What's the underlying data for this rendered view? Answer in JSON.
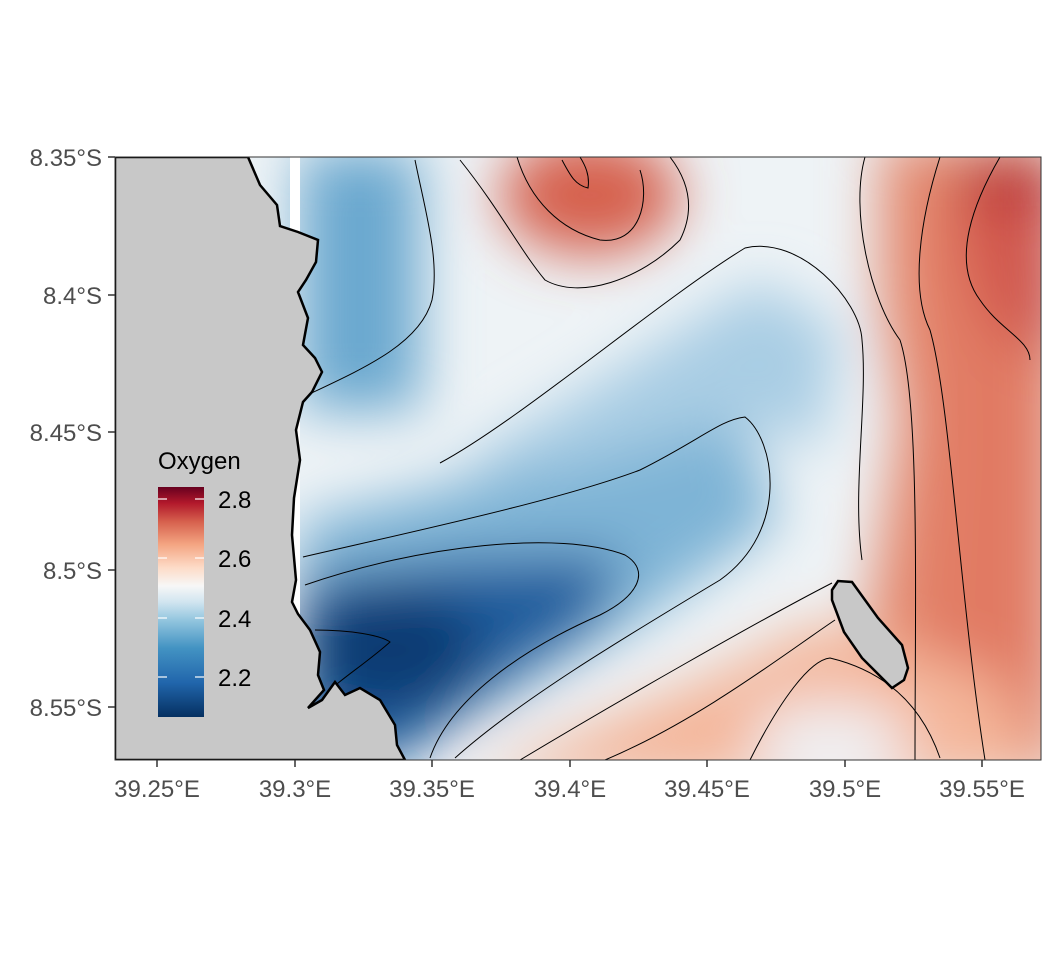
{
  "map": {
    "variable": "Oxygen",
    "x_ticks": [
      "39.25°E",
      "39.3°E",
      "39.35°E",
      "39.4°E",
      "39.45°E",
      "39.5°E",
      "39.55°E"
    ],
    "y_ticks": [
      "8.35°S",
      "8.4°S",
      "8.45°S",
      "8.5°S",
      "8.55°S"
    ],
    "lon_range": [
      39.23,
      39.575
    ],
    "lat_range": [
      -8.57,
      -8.35
    ],
    "colors": {
      "land": "#c8c8c8",
      "coastline": "#000000",
      "contour": "#000000",
      "scale_low": "#053061",
      "scale_mid": "#f7f7f7",
      "scale_high": "#67001f"
    }
  },
  "legend": {
    "title": "Oxygen",
    "position": "inside-left",
    "labels": [
      "2.8",
      "2.6",
      "2.4",
      "2.2"
    ],
    "range": [
      2.08,
      2.85
    ]
  }
}
